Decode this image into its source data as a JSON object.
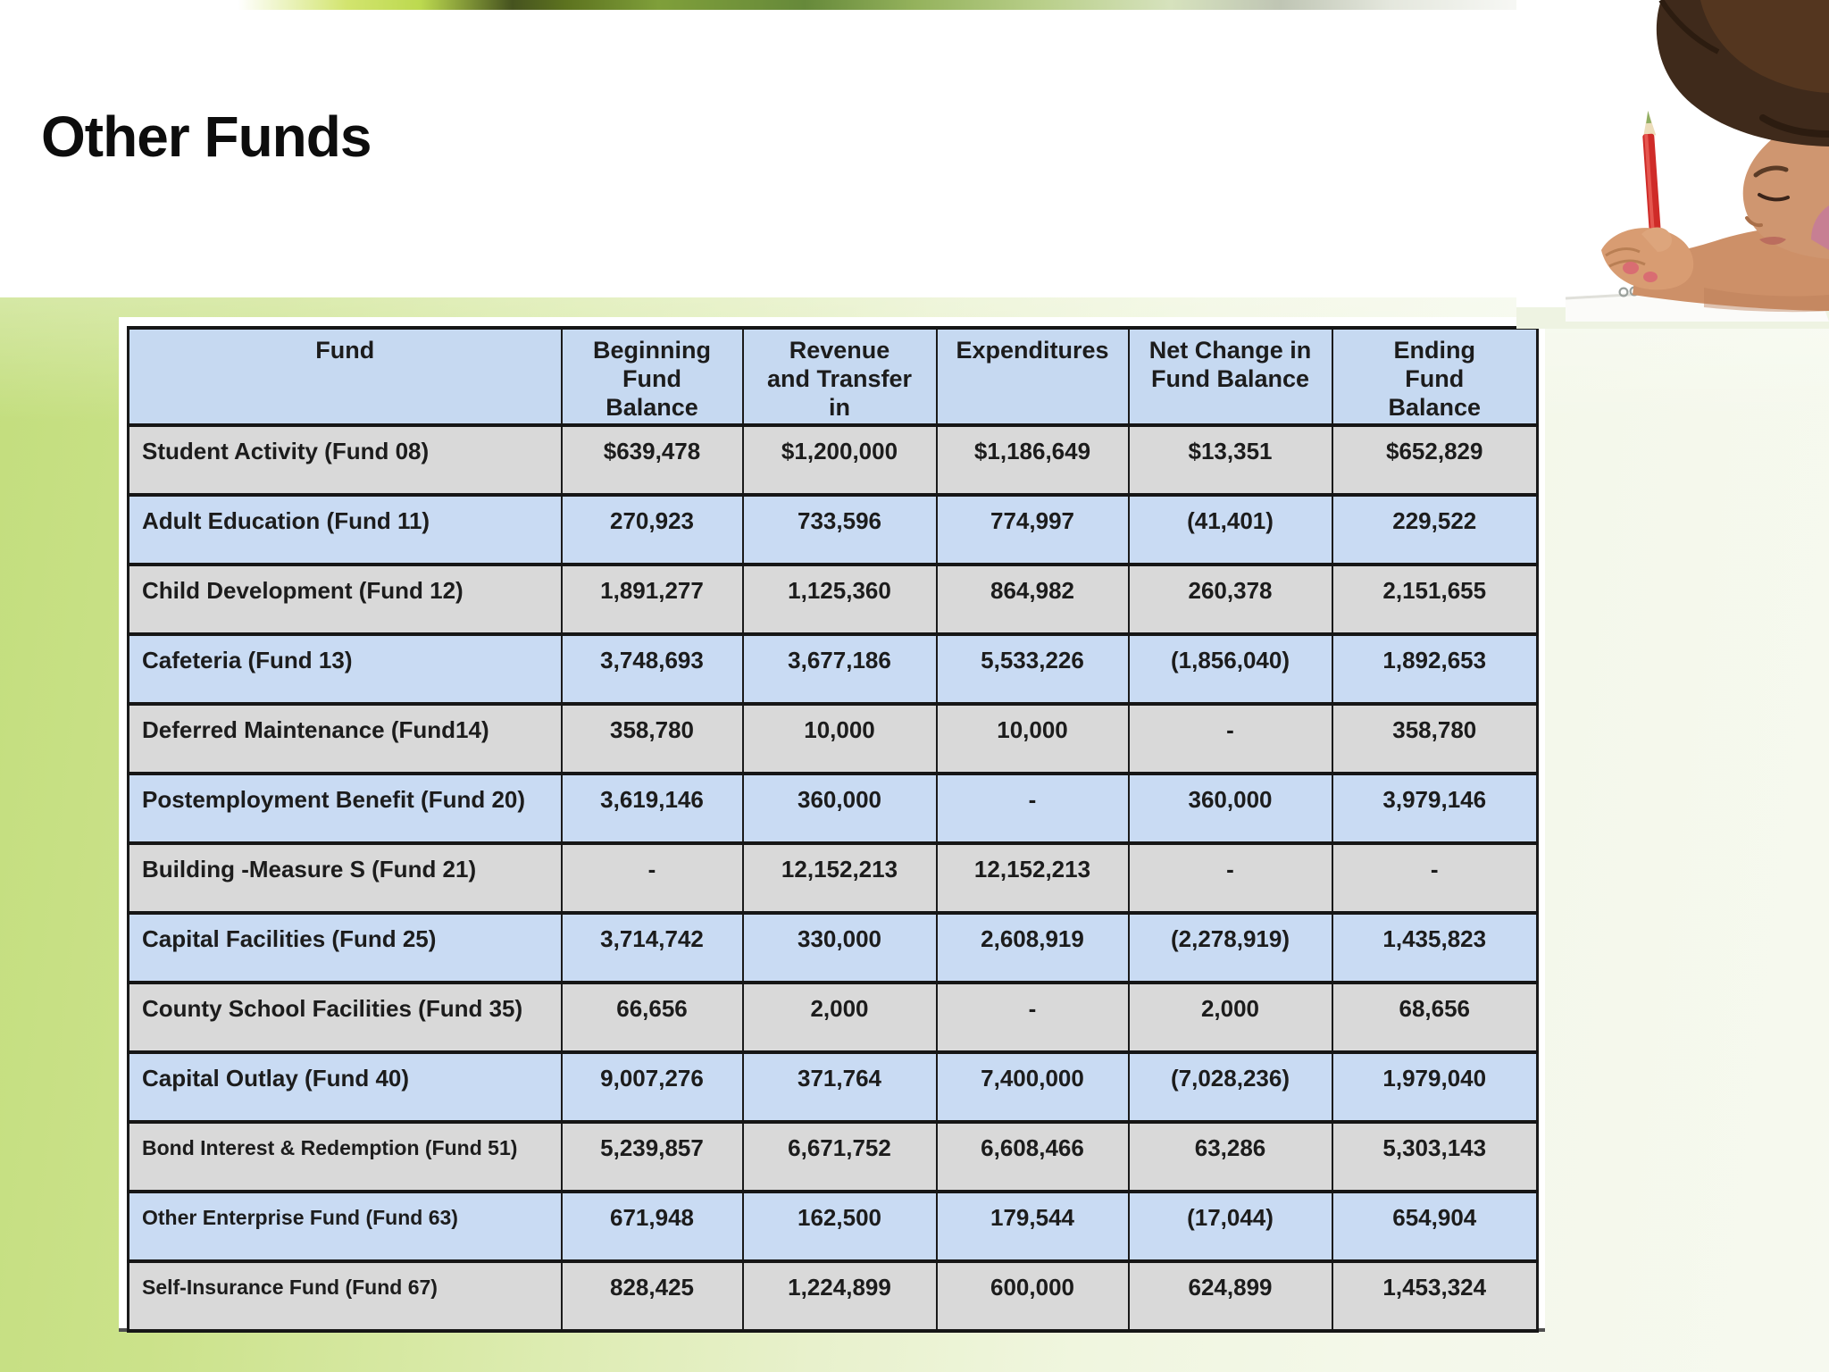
{
  "slide": {
    "title": "Other Funds"
  },
  "table": {
    "headers": [
      "Fund",
      "Beginning\nFund\nBalance",
      "Revenue\nand Transfer\nin",
      "Expenditures",
      "Net Change in\nFund Balance",
      "Ending\nFund\nBalance"
    ],
    "rows": [
      {
        "fund": "Student Activity (Fund 08)",
        "values": [
          "$639,478",
          "$1,200,000",
          "$1,186,649",
          "$13,351",
          "$652,829"
        ]
      },
      {
        "fund": "Adult Education (Fund 11)",
        "values": [
          "270,923",
          "733,596",
          "774,997",
          "(41,401)",
          "229,522"
        ]
      },
      {
        "fund": "Child Development (Fund 12)",
        "values": [
          "1,891,277",
          "1,125,360",
          "864,982",
          "260,378",
          "2,151,655"
        ]
      },
      {
        "fund": "Cafeteria (Fund 13)",
        "values": [
          "3,748,693",
          "3,677,186",
          "5,533,226",
          "(1,856,040)",
          "1,892,653"
        ]
      },
      {
        "fund": "Deferred Maintenance (Fund14)",
        "values": [
          "358,780",
          "10,000",
          "10,000",
          "-",
          "358,780"
        ]
      },
      {
        "fund": "Postemployment Benefit (Fund 20)",
        "values": [
          "3,619,146",
          "360,000",
          "-",
          "360,000",
          "3,979,146"
        ]
      },
      {
        "fund": "Building -Measure S (Fund 21)",
        "values": [
          "-",
          "12,152,213",
          "12,152,213",
          "-",
          "-"
        ]
      },
      {
        "fund": "Capital Facilities (Fund 25)",
        "values": [
          "3,714,742",
          "330,000",
          "2,608,919",
          "(2,278,919)",
          "1,435,823"
        ]
      },
      {
        "fund": "County School Facilities (Fund 35)",
        "values": [
          "66,656",
          "2,000",
          "-",
          "2,000",
          "68,656"
        ]
      },
      {
        "fund": "Capital Outlay (Fund 40)",
        "values": [
          "9,007,276",
          "371,764",
          "7,400,000",
          "(7,028,236)",
          "1,979,040"
        ]
      },
      {
        "fund": "Bond Interest & Redemption (Fund 51)",
        "values": [
          "5,239,857",
          "6,671,752",
          "6,608,466",
          "63,286",
          "5,303,143"
        ]
      },
      {
        "fund": "Other Enterprise Fund (Fund 63)",
        "values": [
          "671,948",
          "162,500",
          "179,544",
          "(17,044)",
          "654,904"
        ]
      },
      {
        "fund": "Self-Insurance Fund (Fund 67)",
        "values": [
          "828,425",
          "1,224,899",
          "600,000",
          "624,899",
          "1,453,324"
        ]
      }
    ]
  },
  "illustration": {
    "alt": "Young girl writing in a spiral notebook with a red pencil"
  },
  "colors": {
    "header_blue": "#c6d9f1",
    "row_blue": "#c9dbf3",
    "row_gray": "#d9d9d9",
    "table_border": "#1a1a1a",
    "accent_green": "#7f9f3a",
    "pencil_red": "#cf2b28"
  }
}
